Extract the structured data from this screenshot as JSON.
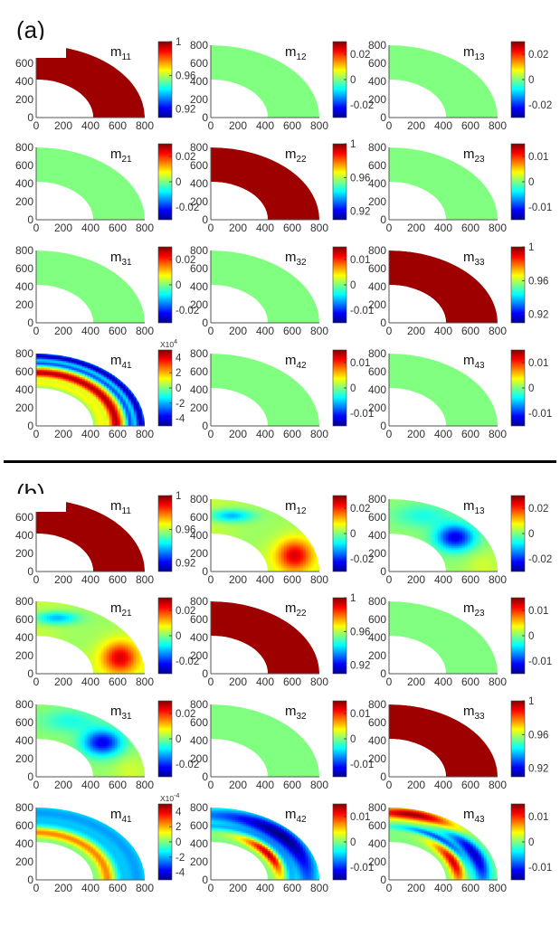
{
  "figure": {
    "panel_labels": [
      "(a)",
      "(b)"
    ]
  },
  "chart_data": {
    "type": "heatmap",
    "description_units": "Mueller matrix element maps over a quarter-annulus domain",
    "x_ticks": [
      "0",
      "200",
      "400",
      "600",
      "800"
    ],
    "y_ticks": [
      "0",
      "200",
      "400",
      "600",
      "800"
    ],
    "xlim": [
      0,
      800
    ],
    "ylim": [
      0,
      800
    ],
    "domain": {
      "inner_radius": 420,
      "outer_radius": 800
    },
    "colormap": "jet",
    "panels": [
      {
        "label": "(a)",
        "rows": [
          [
            {
              "element": "m",
              "sub": "11",
              "cbar_ticks": [
                "1",
                "0.96",
                "0.92"
              ],
              "cbar_range": [
                0.91,
                1.0
              ],
              "cbar_exp": "",
              "field": "uniform",
              "level": 0.97,
              "y_tick_style": "clipped"
            },
            {
              "element": "m",
              "sub": "12",
              "cbar_ticks": [
                "0.02",
                "0",
                "-0.02"
              ],
              "cbar_range": [
                -0.03,
                0.03
              ],
              "cbar_exp": "",
              "field": "uniform",
              "level": 0.5,
              "y_tick_style": "full"
            },
            {
              "element": "m",
              "sub": "13",
              "cbar_ticks": [
                "0.02",
                "0",
                "-0.02"
              ],
              "cbar_range": [
                -0.03,
                0.03
              ],
              "cbar_exp": "",
              "field": "uniform",
              "level": 0.5,
              "y_tick_style": "full"
            }
          ],
          [
            {
              "element": "m",
              "sub": "21",
              "cbar_ticks": [
                "0.02",
                "0",
                "-0.02"
              ],
              "cbar_range": [
                -0.03,
                0.03
              ],
              "cbar_exp": "",
              "field": "uniform",
              "level": 0.5,
              "y_tick_style": "full"
            },
            {
              "element": "m",
              "sub": "22",
              "cbar_ticks": [
                "1",
                "0.96",
                "0.92"
              ],
              "cbar_range": [
                0.91,
                1.0
              ],
              "cbar_exp": "",
              "field": "uniform",
              "level": 0.97,
              "y_tick_style": "full"
            },
            {
              "element": "m",
              "sub": "23",
              "cbar_ticks": [
                "0.01",
                "0",
                "-0.01"
              ],
              "cbar_range": [
                -0.015,
                0.015
              ],
              "cbar_exp": "",
              "field": "uniform",
              "level": 0.5,
              "y_tick_style": "full"
            }
          ],
          [
            {
              "element": "m",
              "sub": "31",
              "cbar_ticks": [
                "0.02",
                "0",
                "-0.02"
              ],
              "cbar_range": [
                -0.03,
                0.03
              ],
              "cbar_exp": "",
              "field": "uniform",
              "level": 0.5,
              "y_tick_style": "full"
            },
            {
              "element": "m",
              "sub": "32",
              "cbar_ticks": [
                "0.01",
                "0",
                "-0.01"
              ],
              "cbar_range": [
                -0.015,
                0.015
              ],
              "cbar_exp": "",
              "field": "uniform",
              "level": 0.5,
              "y_tick_style": "full"
            },
            {
              "element": "m",
              "sub": "33",
              "cbar_ticks": [
                "1",
                "0.96",
                "0.92"
              ],
              "cbar_range": [
                0.91,
                1.0
              ],
              "cbar_exp": "",
              "field": "uniform",
              "level": 0.97,
              "y_tick_style": "full"
            }
          ],
          [
            {
              "element": "m",
              "sub": "41",
              "cbar_ticks": [
                "4",
                "2",
                "0",
                "-2",
                "-4"
              ],
              "cbar_range": [
                -5,
                5
              ],
              "cbar_exp": "X10",
              "cbar_exp_sup": "4",
              "field": "rings_a",
              "level": 0.5,
              "y_tick_style": "full"
            },
            {
              "element": "m",
              "sub": "42",
              "cbar_ticks": [
                "0.01",
                "0",
                "-0.01"
              ],
              "cbar_range": [
                -0.015,
                0.015
              ],
              "cbar_exp": "",
              "field": "uniform",
              "level": 0.5,
              "y_tick_style": "full"
            },
            {
              "element": "m",
              "sub": "43",
              "cbar_ticks": [
                "0.01",
                "0",
                "-0.01"
              ],
              "cbar_range": [
                -0.015,
                0.015
              ],
              "cbar_exp": "",
              "field": "uniform",
              "level": 0.5,
              "y_tick_style": "full"
            }
          ]
        ]
      },
      {
        "label": "(b)",
        "rows": [
          [
            {
              "element": "m",
              "sub": "11",
              "cbar_ticks": [
                "1",
                "0.96",
                "0.92"
              ],
              "cbar_range": [
                0.91,
                1.0
              ],
              "cbar_exp": "",
              "field": "uniform",
              "level": 0.97,
              "y_tick_style": "clipped"
            },
            {
              "element": "m",
              "sub": "12",
              "cbar_ticks": [
                "0.02",
                "0",
                "-0.02"
              ],
              "cbar_range": [
                -0.03,
                0.03
              ],
              "cbar_exp": "",
              "field": "m12b",
              "level": 0.5,
              "y_tick_style": "full"
            },
            {
              "element": "m",
              "sub": "13",
              "cbar_ticks": [
                "0.02",
                "0",
                "-0.02"
              ],
              "cbar_range": [
                -0.03,
                0.03
              ],
              "cbar_exp": "",
              "field": "m13b",
              "level": 0.5,
              "y_tick_style": "full"
            }
          ],
          [
            {
              "element": "m",
              "sub": "21",
              "cbar_ticks": [
                "0.02",
                "0",
                "-0.02"
              ],
              "cbar_range": [
                -0.03,
                0.03
              ],
              "cbar_exp": "",
              "field": "m12b",
              "level": 0.5,
              "y_tick_style": "full"
            },
            {
              "element": "m",
              "sub": "22",
              "cbar_ticks": [
                "1",
                "0.96",
                "0.92"
              ],
              "cbar_range": [
                0.91,
                1.0
              ],
              "cbar_exp": "",
              "field": "uniform",
              "level": 0.97,
              "y_tick_style": "full"
            },
            {
              "element": "m",
              "sub": "23",
              "cbar_ticks": [
                "0.01",
                "0",
                "-0.01"
              ],
              "cbar_range": [
                -0.015,
                0.015
              ],
              "cbar_exp": "",
              "field": "uniform",
              "level": 0.5,
              "y_tick_style": "full"
            }
          ],
          [
            {
              "element": "m",
              "sub": "31",
              "cbar_ticks": [
                "0.02",
                "0",
                "-0.02"
              ],
              "cbar_range": [
                -0.03,
                0.03
              ],
              "cbar_exp": "",
              "field": "m13b",
              "level": 0.5,
              "y_tick_style": "full"
            },
            {
              "element": "m",
              "sub": "32",
              "cbar_ticks": [
                "0.01",
                "0",
                "-0.01"
              ],
              "cbar_range": [
                -0.015,
                0.015
              ],
              "cbar_exp": "",
              "field": "uniform",
              "level": 0.5,
              "y_tick_style": "full"
            },
            {
              "element": "m",
              "sub": "33",
              "cbar_ticks": [
                "1",
                "0.96",
                "0.92"
              ],
              "cbar_range": [
                0.91,
                1.0
              ],
              "cbar_exp": "",
              "field": "uniform",
              "level": 0.97,
              "y_tick_style": "full"
            }
          ],
          [
            {
              "element": "m",
              "sub": "41",
              "cbar_ticks": [
                "4",
                "2",
                "0",
                "-2",
                "-4"
              ],
              "cbar_range": [
                -5,
                5
              ],
              "cbar_exp": "X10",
              "cbar_exp_sup": "-4",
              "field": "rings_b",
              "level": 0.5,
              "y_tick_style": "full"
            },
            {
              "element": "m",
              "sub": "42",
              "cbar_ticks": [
                "0.01",
                "0",
                "-0.01"
              ],
              "cbar_range": [
                -0.015,
                0.015
              ],
              "cbar_exp": "",
              "field": "m42b",
              "level": 0.5,
              "y_tick_style": "full"
            },
            {
              "element": "m",
              "sub": "43",
              "cbar_ticks": [
                "0.01",
                "0",
                "-0.01"
              ],
              "cbar_range": [
                -0.015,
                0.015
              ],
              "cbar_exp": "",
              "field": "m43b",
              "level": 0.5,
              "y_tick_style": "full"
            }
          ]
        ]
      }
    ]
  }
}
